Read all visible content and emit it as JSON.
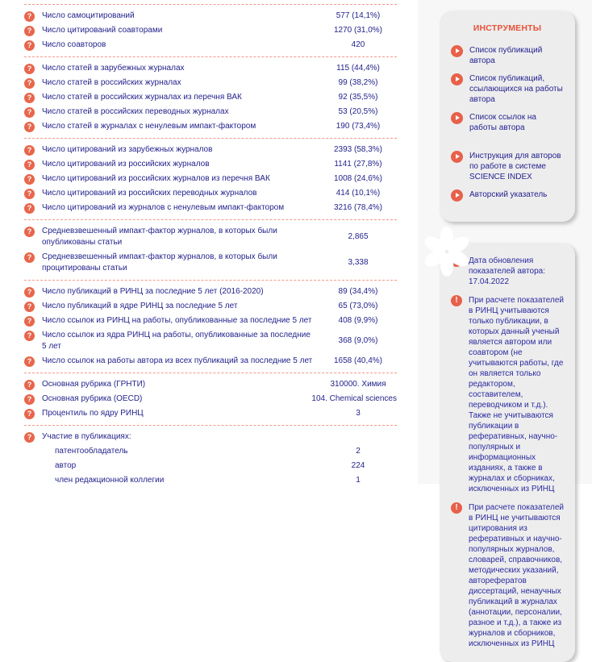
{
  "colors": {
    "accent": "#e8604a",
    "title_red": "#e8523a",
    "text_navy": "#23238c",
    "separator_salmon": "#f4998a",
    "panel_gray": "#ededed",
    "right_background": "#f7f7f7"
  },
  "stats": {
    "groups": [
      {
        "rows": [
          {
            "label": "Число самоцитирований",
            "value": "577 (14,1%)"
          },
          {
            "label": "Число цитирований соавторами",
            "value": "1270 (31,0%)"
          },
          {
            "label": "Число соавторов",
            "value": "420"
          }
        ]
      },
      {
        "rows": [
          {
            "label": "Число статей в зарубежных журналах",
            "value": "115 (44,4%)"
          },
          {
            "label": "Число статей в российских журналах",
            "value": "99 (38,2%)"
          },
          {
            "label": "Число статей в российских журналах из перечня ВАК",
            "value": "92 (35,5%)"
          },
          {
            "label": "Число статей в российских переводных журналах",
            "value": "53 (20,5%)"
          },
          {
            "label": "Число статей в журналах с ненулевым импакт-фактором",
            "value": "190 (73,4%)"
          }
        ]
      },
      {
        "rows": [
          {
            "label": "Число цитирований из зарубежных журналов",
            "value": "2393 (58,3%)"
          },
          {
            "label": "Число цитирований из российских журналов",
            "value": "1141 (27,8%)"
          },
          {
            "label": "Число цитирований из российских журналов из перечня ВАК",
            "value": "1008 (24,6%)"
          },
          {
            "label": "Число цитирований из российских переводных журналов",
            "value": "414 (10,1%)"
          },
          {
            "label": "Число цитирований из журналов с ненулевым импакт-фактором",
            "value": "3216 (78,4%)"
          }
        ]
      },
      {
        "rows": [
          {
            "label": "Средневзвешенный импакт-фактор журналов, в которых были опубликованы статьи",
            "value": "2,865"
          },
          {
            "label": "Средневзвешенный импакт-фактор журналов, в которых были процитированы статьи",
            "value": "3,338"
          }
        ]
      },
      {
        "rows": [
          {
            "label": "Число публикаций в РИНЦ за последние 5 лет (2016-2020)",
            "value": "89 (34,4%)"
          },
          {
            "label": "Число публикаций в ядре РИНЦ за последние 5 лет",
            "value": "65 (73,0%)"
          },
          {
            "label": "Число ссылок из РИНЦ на работы, опубликованные за последние 5 лет",
            "value": "408 (9,9%)"
          },
          {
            "label": "Число ссылок из ядра РИНЦ на работы, опубликованные за последние 5 лет",
            "value": "368 (9,0%)"
          },
          {
            "label": "Число ссылок на работы автора из всех публикаций за последние 5 лет",
            "value": "1658 (40,4%)"
          }
        ]
      },
      {
        "rows": [
          {
            "label": "Основная рубрика (ГРНТИ)",
            "value": "310000. Химия"
          },
          {
            "label": "Основная рубрика (OECD)",
            "value": "104. Chemical sciences"
          },
          {
            "label": "Процентиль по ядру РИНЦ",
            "value": "3"
          }
        ]
      }
    ]
  },
  "participation": {
    "header": "Участие в публикациях:",
    "rows": [
      {
        "label": "патентообладатель",
        "value": "2"
      },
      {
        "label": "автор",
        "value": "224"
      },
      {
        "label": "член редакционной коллегии",
        "value": "1"
      }
    ]
  },
  "tools": {
    "title": "ИНСТРУМЕНТЫ",
    "links_top": [
      {
        "label": "Список публикаций автора"
      },
      {
        "label": "Список публикаций, ссылающихся на работы автора"
      },
      {
        "label": "Список ссылок на работы автора"
      }
    ],
    "links_bottom": [
      {
        "label": "Инструкция для авторов по работе в системе SCIENCE INDEX"
      },
      {
        "label": "Авторский указатель"
      }
    ]
  },
  "notes": {
    "items": [
      "Дата обновления показателей автора: 17.04.2022",
      "При расчете показателей в РИНЦ учитываются только публикации, в которых данный ученый является автором или соавтором (не учитываются работы, где он является только редактором, составителем, переводчиком и т.д.). Также не учитываются публикации в реферативных, научно-популярных и информационных изданиях, а также в журналах и сборниках, исключенных из РИНЦ",
      "При расчете показателей в РИНЦ не учитываются цитирования из реферативных и научно-популярных журналов, словарей, справочников, методических указаний, авторефератов диссертаций, ненаучных публикаций в журналах (аннотации, персоналии, разное и т.д.), а также из журналов и сборников, исключенных из РИНЦ"
    ]
  }
}
